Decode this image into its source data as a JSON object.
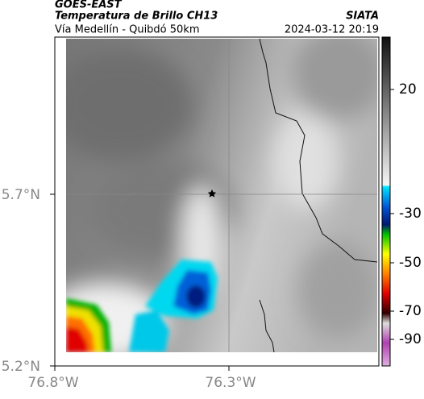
{
  "header": {
    "satellite": "GOES-EAST",
    "title": "Temperatura de Brillo CH13",
    "subtitle": "Vía Medellín - Quibdó 50km",
    "source": "SIATA",
    "timestamp": "2024-03-12 20:19"
  },
  "map": {
    "lat_labels": [
      "5.7°N",
      "5.2°N"
    ],
    "lon_labels": [
      "76.8°W",
      "76.3°W"
    ]
  },
  "colorbar": {
    "ticks": [
      20,
      -30,
      -50,
      -70,
      -90
    ]
  }
}
